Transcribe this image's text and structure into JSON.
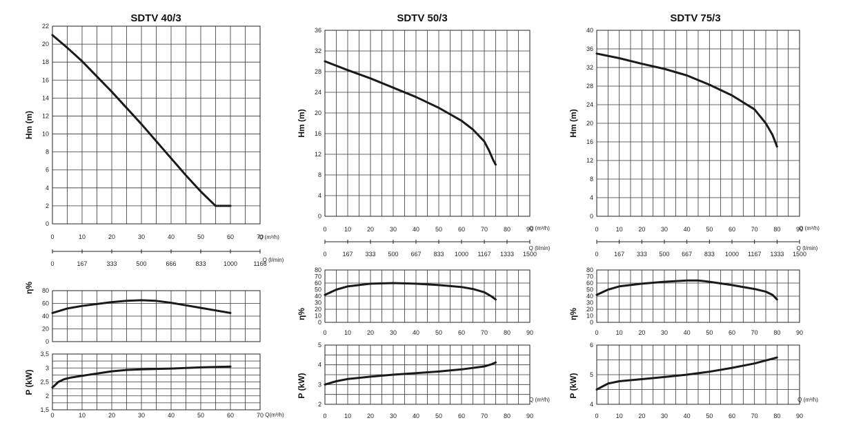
{
  "chart_data": [
    {
      "title": "SDTV 40/3",
      "type": "line",
      "hm": {
        "ylabel": "Hm   (m)",
        "xlim": [
          0,
          70
        ],
        "ylim": [
          0,
          22
        ],
        "yticks": [
          "0",
          "2",
          "4",
          "6",
          "8",
          "10",
          "12",
          "14",
          "16",
          "18",
          "20",
          "22"
        ],
        "xticks": [
          "0",
          "10",
          "20",
          "30",
          "40",
          "50",
          "60",
          "70"
        ],
        "xunit": "Q (m³/h)",
        "series": [
          {
            "x": [
              0,
              5,
              10,
              15,
              20,
              25,
              30,
              35,
              40,
              45,
              50,
              55,
              60
            ],
            "y": [
              21,
              19.6,
              18.1,
              16.4,
              14.7,
              12.9,
              11.1,
              9.2,
              7.3,
              5.4,
              3.6,
              2.0,
              2.0
            ]
          }
        ]
      },
      "lmin": {
        "ticks": [
          "0",
          "167",
          "333",
          "500",
          "666",
          "833",
          "1000",
          "1166"
        ],
        "unit": "Q (l/min)"
      },
      "eta": {
        "ylabel": "η%",
        "xlim": [
          0,
          70
        ],
        "ylim": [
          0,
          80
        ],
        "yticks": [
          "0",
          "20",
          "40",
          "60",
          "80"
        ],
        "series": [
          {
            "x": [
              0,
              5,
              10,
              15,
              20,
              25,
              30,
              35,
              40,
              45,
              50,
              55,
              60
            ],
            "y": [
              45,
              52,
              56,
              59,
              62,
              64,
              65,
              64,
              61,
              57,
              53,
              49,
              45
            ]
          }
        ]
      },
      "power": {
        "ylabel": "P   (kW)",
        "xlim": [
          0,
          70
        ],
        "ylim": [
          1.5,
          3.5
        ],
        "yticks": [
          "1,5",
          "2",
          "2,5",
          "3",
          "3,5"
        ],
        "xticks": [
          "0",
          "10",
          "20",
          "30",
          "40",
          "50",
          "60",
          "70"
        ],
        "xunit": "Q(m³/h)",
        "series": [
          {
            "x": [
              0,
              2,
              4,
              6,
              10,
              15,
              20,
              25,
              30,
              40,
              50,
              60
            ],
            "y": [
              2.3,
              2.5,
              2.6,
              2.65,
              2.72,
              2.8,
              2.88,
              2.93,
              2.95,
              2.98,
              3.02,
              3.05
            ]
          }
        ]
      }
    },
    {
      "title": "SDTV 50/3",
      "type": "line",
      "hm": {
        "ylabel": "Hm   (m)",
        "xlim": [
          0,
          90
        ],
        "ylim": [
          0,
          36
        ],
        "yticks": [
          "0",
          "4",
          "8",
          "12",
          "16",
          "20",
          "24",
          "28",
          "32",
          "36"
        ],
        "xticks": [
          "0",
          "10",
          "20",
          "30",
          "40",
          "50",
          "60",
          "70",
          "80",
          "90"
        ],
        "xunit": "Q (m³/h)",
        "series": [
          {
            "x": [
              0,
              10,
              20,
              30,
              40,
              50,
              60,
              65,
              70,
              72,
              74,
              75
            ],
            "y": [
              30,
              28.3,
              26.7,
              24.9,
              23.1,
              21.0,
              18.5,
              16.8,
              14.5,
              12.8,
              10.8,
              10
            ]
          }
        ]
      },
      "lmin": {
        "ticks": [
          "0",
          "167",
          "333",
          "500",
          "667",
          "833",
          "1000",
          "1167",
          "1333",
          "1500"
        ],
        "unit": "Q (l/min)"
      },
      "eta": {
        "ylabel": "η%",
        "xlim": [
          0,
          90
        ],
        "ylim": [
          0,
          80
        ],
        "yticks": [
          "0",
          "10",
          "20",
          "30",
          "40",
          "50",
          "60",
          "70",
          "80"
        ],
        "xticks": [
          "0",
          "10",
          "20",
          "30",
          "40",
          "50",
          "60",
          "70",
          "80",
          "90"
        ],
        "series": [
          {
            "x": [
              0,
              5,
              10,
              20,
              30,
              40,
              50,
              60,
              65,
              70,
              73,
              75
            ],
            "y": [
              42,
              50,
              55,
              59,
              60,
              59,
              57,
              54,
              51,
              46,
              40,
              35
            ]
          }
        ]
      },
      "power": {
        "ylabel": "P   (kW)",
        "xlim": [
          0,
          90
        ],
        "ylim": [
          2,
          5
        ],
        "yticks": [
          "2",
          "3",
          "4",
          "5"
        ],
        "xticks": [
          "0",
          "10",
          "20",
          "30",
          "40",
          "50",
          "60",
          "70",
          "80",
          "90"
        ],
        "xunit": "Q (m³/h)",
        "series": [
          {
            "x": [
              0,
              5,
              10,
              20,
              30,
              40,
              50,
              60,
              70,
              73,
              75
            ],
            "y": [
              3.0,
              3.17,
              3.28,
              3.4,
              3.5,
              3.58,
              3.66,
              3.77,
              3.92,
              4.02,
              4.12
            ]
          }
        ]
      }
    },
    {
      "title": "SDTV 75/3",
      "type": "line",
      "hm": {
        "ylabel": "Hm   (m)",
        "xlim": [
          0,
          90
        ],
        "ylim": [
          0,
          40
        ],
        "yticks": [
          "0",
          "4",
          "8",
          "12",
          "16",
          "20",
          "24",
          "28",
          "32",
          "36",
          "40"
        ],
        "xticks": [
          "0",
          "10",
          "20",
          "30",
          "40",
          "50",
          "60",
          "70",
          "80",
          "90"
        ],
        "xunit": "Q (m³/h)",
        "series": [
          {
            "x": [
              0,
              10,
              20,
              30,
              40,
              50,
              60,
              70,
              75,
              78,
              80
            ],
            "y": [
              35,
              34,
              32.8,
              31.7,
              30.3,
              28.3,
              26,
              23,
              20,
              17.5,
              15
            ]
          }
        ]
      },
      "lmin": {
        "ticks": [
          "0",
          "167",
          "333",
          "500",
          "667",
          "833",
          "1000",
          "1167",
          "1333",
          "1500"
        ],
        "unit": "Q (l/min)"
      },
      "eta": {
        "ylabel": "η%",
        "xlim": [
          0,
          90
        ],
        "ylim": [
          0,
          80
        ],
        "yticks": [
          "0",
          "10",
          "20",
          "30",
          "40",
          "50",
          "60",
          "70",
          "80"
        ],
        "xticks": [
          "0",
          "10",
          "20",
          "30",
          "40",
          "50",
          "60",
          "70",
          "80",
          "90"
        ],
        "series": [
          {
            "x": [
              0,
              5,
              10,
              20,
              30,
              40,
              45,
              50,
              60,
              70,
              75,
              78,
              80
            ],
            "y": [
              42,
              50,
              55,
              59,
              62,
              64,
              64,
              62,
              57,
              51,
              47,
              42,
              35
            ]
          }
        ]
      },
      "power": {
        "ylabel": "P   (kW)",
        "xlim": [
          0,
          90
        ],
        "ylim": [
          4,
          6
        ],
        "yticks": [
          "4",
          "5",
          "6"
        ],
        "xticks": [
          "0",
          "10",
          "20",
          "30",
          "40",
          "50",
          "60",
          "70",
          "80",
          "90"
        ],
        "xunit": "Q (m³/h)",
        "series": [
          {
            "x": [
              0,
              5,
              10,
              20,
              30,
              40,
              50,
              60,
              70,
              80
            ],
            "y": [
              4.5,
              4.7,
              4.78,
              4.85,
              4.92,
              5.0,
              5.1,
              5.23,
              5.38,
              5.58
            ]
          }
        ]
      }
    }
  ]
}
